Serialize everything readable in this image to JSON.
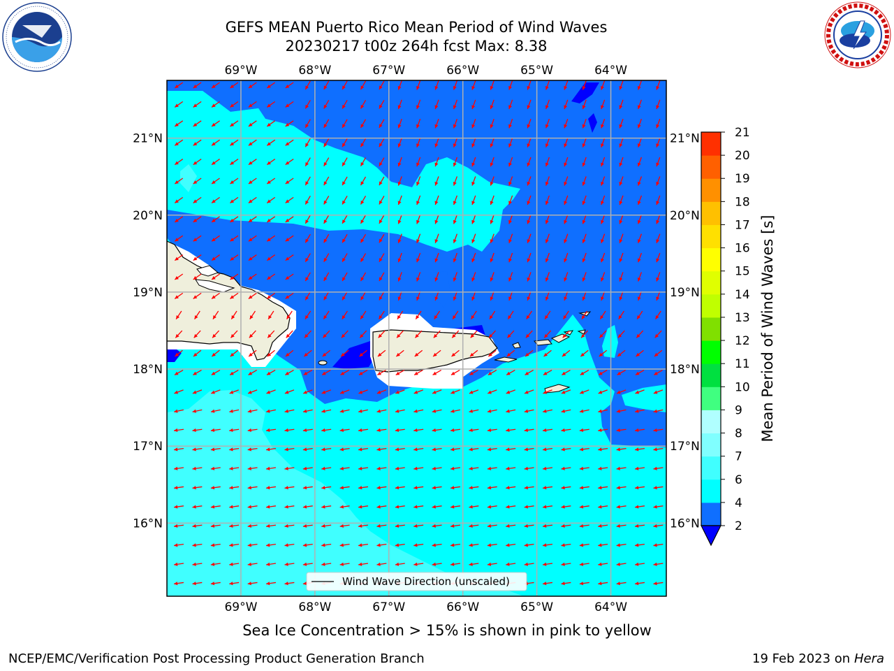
{
  "header": {
    "title_line1": "GEFS MEAN Puerto Rico Mean Period of Wind Waves",
    "title_line2": "20230217 t00z 264h fcst   Max: 8.38"
  },
  "map": {
    "lon_labels": [
      "69°W",
      "68°W",
      "67°W",
      "66°W",
      "65°W",
      "64°W"
    ],
    "lat_labels": [
      "21°N",
      "20°N",
      "19°N",
      "18°N",
      "17°N",
      "16°N"
    ],
    "lon_values": [
      -69,
      -68,
      -67,
      -66,
      -65,
      -64
    ],
    "lat_values": [
      21,
      20,
      19,
      18,
      17,
      16
    ],
    "lon_range": [
      -70,
      -63.25
    ],
    "lat_range": [
      15.05,
      21.75
    ],
    "legend_label": "Wind Wave Direction (unscaled)",
    "arrow_color": "#ff0000",
    "land_color": "#efefdc"
  },
  "colorbar": {
    "label": "Mean Period of Wind Waves [s]",
    "ticks": [
      "2",
      "4",
      "6",
      "7",
      "8",
      "9",
      "10",
      "11",
      "12",
      "13",
      "14",
      "15",
      "16",
      "17",
      "18",
      "19",
      "20",
      "21"
    ],
    "colors": [
      "#0f6fff",
      "#00ffff",
      "#40ffff",
      "#80ffff",
      "#b0ffff",
      "#40ff80",
      "#00e040",
      "#00ff00",
      "#80e000",
      "#c0ff00",
      "#e0ff00",
      "#ffff00",
      "#ffe000",
      "#ffc000",
      "#ff9000",
      "#ff6000",
      "#ff3000",
      "#ff0000"
    ],
    "under_color": "#0000ff"
  },
  "footer": {
    "note": "Sea Ice Concentration > 15% is shown in pink to yellow",
    "left": "NCEP/EMC/Verification Post Processing Product Generation Branch",
    "date": "19 Feb 2023 on",
    "host": "Hera"
  }
}
